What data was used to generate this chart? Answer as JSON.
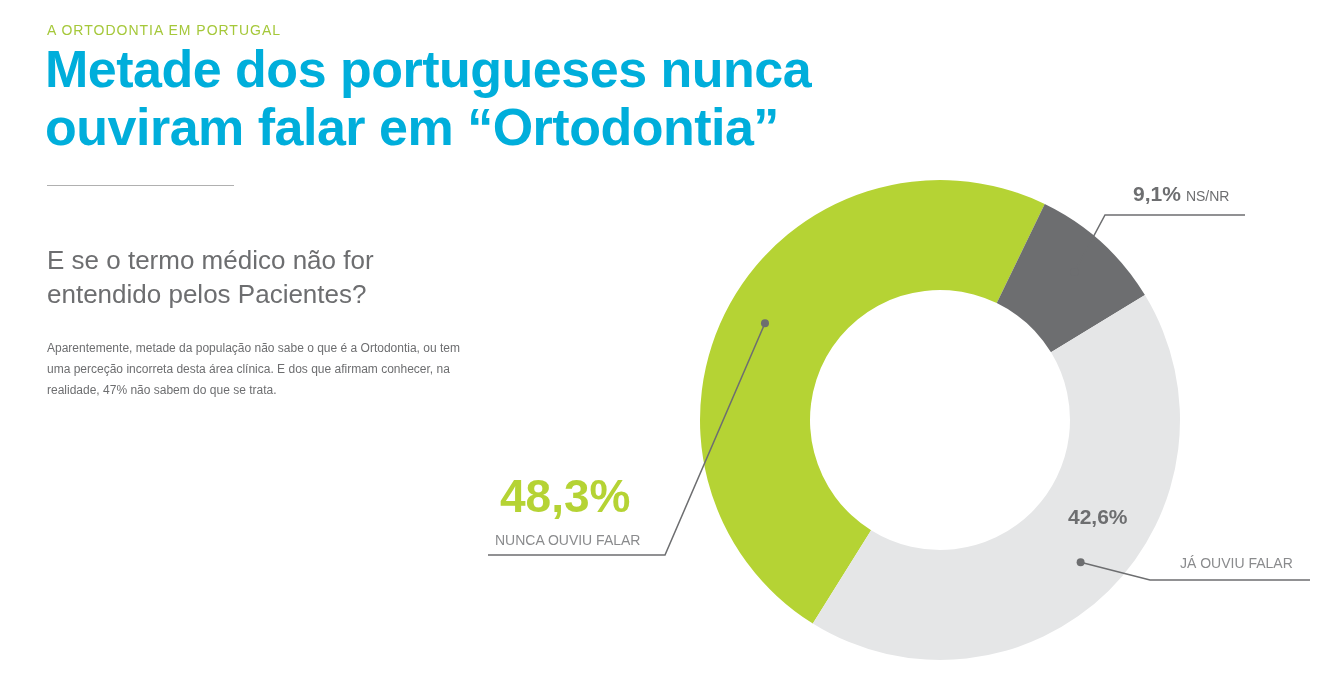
{
  "chart_data": {
    "type": "donut",
    "title": "Metade dos portugueses nunca ouviram falar em “Ortodontia”",
    "subtitle": "E se o termo médico não for entendido pelos Pacientes?",
    "annotations": [
      "A ORTODONTIA EM PORTUGAL",
      "Aparentemente, metade da população não sabe o que é a Ortodontia, ou tem uma perceção incorreta desta área clínica. E dos que afirmam conhecer, na realidade, 47% não sabem do que se trata."
    ],
    "categories": [
      "NUNCA OUVIU FALAR",
      "NS/NR",
      "JÁ OUVIU FALAR"
    ],
    "values": [
      48.3,
      9.1,
      42.6
    ],
    "value_labels": [
      "48,3%",
      "9,1%",
      "42,6%"
    ],
    "colors": [
      "#b5d334",
      "#6d6e70",
      "#e5e6e7"
    ]
  }
}
